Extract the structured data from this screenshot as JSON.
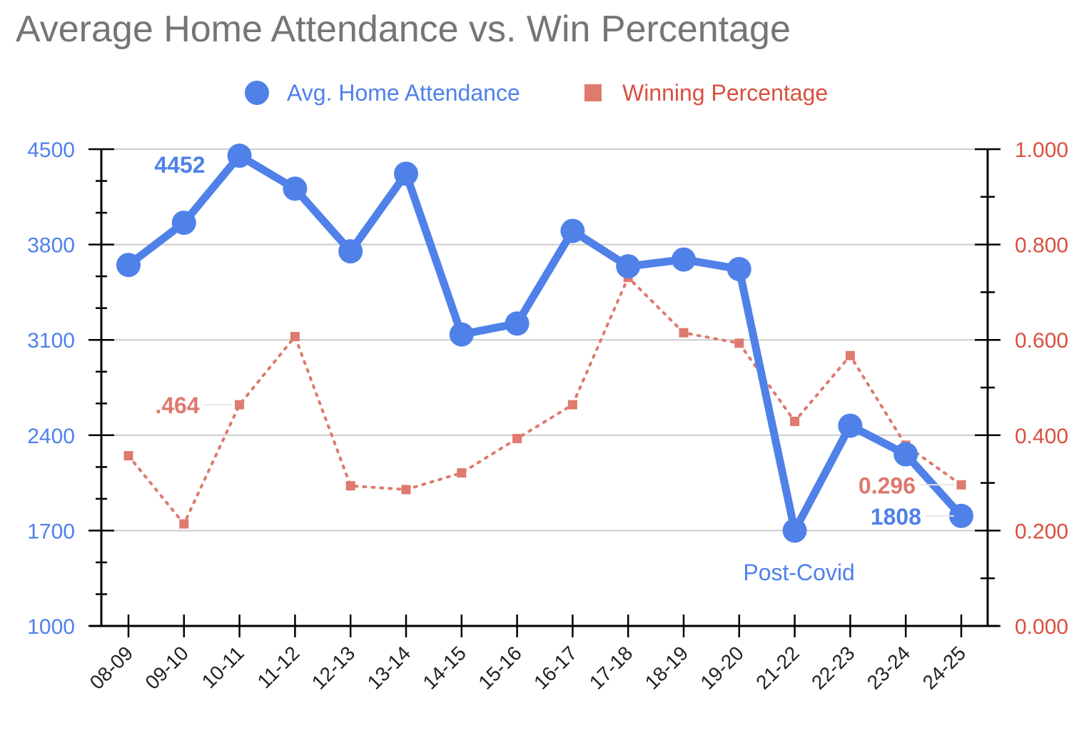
{
  "chart_data": {
    "type": "line",
    "title": "Average Home Attendance vs. Win Percentage",
    "categories": [
      "08-09",
      "09-10",
      "10-11",
      "11-12",
      "12-13",
      "13-14",
      "14-15",
      "15-16",
      "16-17",
      "17-18",
      "18-19",
      "19-20",
      "21-22",
      "22-23",
      "23-24",
      "24-25"
    ],
    "series": [
      {
        "name": "Avg. Home Attendance",
        "axis": "left",
        "color": "#4f81e8",
        "style": "solid",
        "marker": "circle",
        "values": [
          3650,
          3960,
          4452,
          4210,
          3750,
          4320,
          3140,
          3220,
          3900,
          3640,
          3690,
          3620,
          1700,
          2470,
          2260,
          1808
        ]
      },
      {
        "name": "Winning Percentage",
        "axis": "right",
        "color": "#de7a6e",
        "style": "dotted",
        "marker": "square",
        "values": [
          0.357,
          0.214,
          0.464,
          0.607,
          0.294,
          0.286,
          0.321,
          0.393,
          0.464,
          0.731,
          0.615,
          0.593,
          0.429,
          0.567,
          0.379,
          0.296
        ]
      }
    ],
    "y_left": {
      "min": 1000,
      "max": 4500,
      "ticks": [
        "1000",
        "1700",
        "2400",
        "3100",
        "3800",
        "4500"
      ],
      "color": "#4f81e8"
    },
    "y_right": {
      "min": 0,
      "max": 1,
      "ticks": [
        "0.000",
        "0.200",
        "0.400",
        "0.600",
        "0.800",
        "1.000"
      ],
      "color": "#d9503f"
    },
    "grid": true,
    "legend_position": "top",
    "annotations": [
      {
        "series": 0,
        "index": 2,
        "text": "4452",
        "placement": "left"
      },
      {
        "series": 1,
        "index": 2,
        "text": ".464",
        "placement": "left"
      },
      {
        "series": 1,
        "index": 15,
        "text": "0.296",
        "placement": "left"
      },
      {
        "series": 0,
        "index": 15,
        "text": "1808",
        "placement": "left"
      }
    ],
    "notes": [
      {
        "text": "Post-Covid",
        "near_category": "21-22"
      }
    ]
  }
}
